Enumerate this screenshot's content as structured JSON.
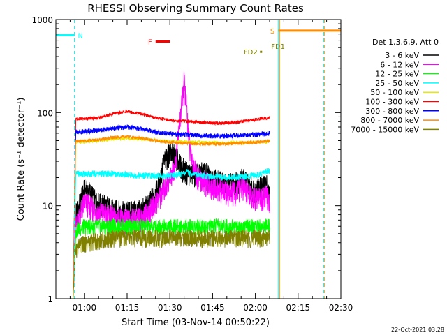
{
  "chart_data": {
    "type": "line",
    "title": "RHESSI Observing Summary Count Rates",
    "xlabel": "Start Time (03-Nov-14 00:50:22)",
    "ylabel": "Count Rate (s⁻¹ detector⁻¹)",
    "yscale": "log",
    "xlim_minutes": [
      0,
      100
    ],
    "ylim": [
      1,
      1000
    ],
    "x_ticks": [
      {
        "m": 10,
        "label": "01:00"
      },
      {
        "m": 25,
        "label": "01:15"
      },
      {
        "m": 40,
        "label": "01:30"
      },
      {
        "m": 55,
        "label": "01:45"
      },
      {
        "m": 70,
        "label": "02:00"
      },
      {
        "m": 85,
        "label": "02:15"
      },
      {
        "m": 100,
        "label": "02:30"
      }
    ],
    "y_ticks": [
      {
        "v": 1,
        "label": "1"
      },
      {
        "v": 10,
        "label": "10"
      },
      {
        "v": 100,
        "label": "100"
      },
      {
        "v": 1000,
        "label": "1000"
      }
    ],
    "legend_title": "Det 1,3,6,9, Att 0",
    "legend": [
      {
        "label": "3 - 6 keV",
        "color": "#000000"
      },
      {
        "label": "6 - 12 keV",
        "color": "#ff00ff"
      },
      {
        "label": "12 - 25 keV",
        "color": "#00ff00"
      },
      {
        "label": "25 - 50 keV",
        "color": "#00ffff"
      },
      {
        "label": "50 - 100 keV",
        "color": "#e8e800"
      },
      {
        "label": "100 - 300 keV",
        "color": "#ff0000"
      },
      {
        "label": "300 - 800 keV",
        "color": "#0000ff"
      },
      {
        "label": "800 - 7000 keV",
        "color": "#ff8c00"
      },
      {
        "label": "7000 - 15000 keV",
        "color": "#808000"
      }
    ],
    "series": [
      {
        "name": "3 - 6 keV",
        "color": "#000000",
        "x": [
          6,
          7,
          9,
          10,
          12,
          14,
          18,
          20,
          25,
          30,
          33,
          36,
          38,
          40,
          42,
          44,
          46,
          48,
          50,
          52,
          55,
          58,
          60,
          63,
          66,
          68,
          70,
          72,
          74,
          75
        ],
        "y": [
          1,
          8,
          12,
          15,
          14,
          11,
          10,
          9,
          8.5,
          9,
          11,
          16,
          30,
          38,
          34,
          26,
          23,
          22,
          22,
          23,
          20,
          18,
          17,
          18,
          20,
          16,
          15,
          16,
          17,
          12
        ]
      },
      {
        "name": "6 - 12 keV",
        "color": "#ff00ff",
        "x": [
          6,
          7,
          9,
          10,
          12,
          14,
          16,
          18,
          20,
          25,
          30,
          33,
          36,
          38,
          40,
          42,
          43,
          44,
          45,
          46,
          47,
          48,
          49,
          50,
          52,
          55,
          58,
          60,
          63,
          66,
          68,
          70,
          72,
          74,
          75
        ],
        "y": [
          2,
          6,
          9,
          11,
          10,
          8.5,
          8.5,
          8,
          7.5,
          7,
          7.5,
          9,
          12,
          15,
          20,
          28,
          60,
          110,
          220,
          100,
          40,
          30,
          24,
          20,
          18,
          16,
          15,
          14,
          14,
          16,
          13,
          12,
          12,
          13,
          10
        ]
      },
      {
        "name": "12 - 25 keV",
        "color": "#00ff00",
        "x": [
          6,
          7,
          10,
          20,
          30,
          40,
          50,
          60,
          70,
          75
        ],
        "y": [
          1,
          5.5,
          6,
          6,
          6,
          6,
          6,
          6,
          6,
          6
        ]
      },
      {
        "name": "25 - 50 keV",
        "color": "#00ffff",
        "x": [
          6,
          7,
          10,
          20,
          30,
          40,
          44,
          46,
          48,
          52,
          60,
          70,
          75
        ],
        "y": [
          1,
          22,
          22,
          22,
          21,
          21,
          22,
          23,
          22,
          21,
          20,
          21,
          24
        ]
      },
      {
        "name": "50 - 100 keV",
        "color": "#e8e800",
        "x": [
          6,
          7,
          15,
          20,
          25,
          30,
          40,
          50,
          60,
          70,
          75
        ],
        "y": [
          1,
          48,
          50,
          52,
          53,
          52,
          49,
          48,
          47,
          48,
          49
        ]
      },
      {
        "name": "100 - 300 keV",
        "color": "#ff0000",
        "x": [
          6,
          7,
          10,
          15,
          20,
          25,
          30,
          35,
          40,
          45,
          50,
          55,
          60,
          65,
          70,
          75
        ],
        "y": [
          1,
          85,
          86,
          88,
          97,
          103,
          97,
          88,
          83,
          81,
          79,
          77,
          77,
          80,
          84,
          89
        ]
      },
      {
        "name": "300 - 800 keV",
        "color": "#0000ff",
        "x": [
          6,
          7,
          10,
          15,
          20,
          25,
          30,
          35,
          40,
          45,
          50,
          55,
          60,
          65,
          70,
          75
        ],
        "y": [
          1,
          62,
          63,
          64,
          68,
          70,
          67,
          62,
          59,
          58,
          57,
          56,
          56,
          57,
          58,
          60
        ]
      },
      {
        "name": "800 - 7000 keV",
        "color": "#ff8c00",
        "x": [
          6,
          7,
          10,
          15,
          20,
          25,
          30,
          35,
          40,
          45,
          50,
          55,
          60,
          65,
          70,
          75
        ],
        "y": [
          1,
          49,
          50,
          51,
          54,
          55,
          53,
          50,
          48,
          47,
          46,
          46,
          46,
          47,
          48,
          49
        ]
      },
      {
        "name": "7000 - 15000 keV",
        "color": "#808000",
        "x": [
          6,
          7,
          10,
          20,
          30,
          40,
          50,
          60,
          70,
          75
        ],
        "y": [
          1,
          3.5,
          4,
          4.5,
          4.5,
          4.5,
          4.5,
          4.5,
          4.5,
          4.5
        ]
      }
    ],
    "flags": [
      {
        "label": "N",
        "color": "#00ffff",
        "y": 680,
        "x_start": 0,
        "x_end": 6.5,
        "label_side": "right"
      },
      {
        "label": "F",
        "color": "#ff0000",
        "y": 580,
        "x_start": 35,
        "x_end": 40,
        "label_side": "left"
      },
      {
        "label": "S",
        "color": "#ff8c00",
        "y": 760,
        "x_start": 78,
        "x_end": 100,
        "label_side": "left"
      },
      {
        "label": "FD1",
        "color": "#808000",
        "y": 520,
        "x_start": 0,
        "x_end": 100,
        "label_side": "label_only"
      },
      {
        "label": "FD2",
        "color": "#808000",
        "y": 450,
        "x_start": 72,
        "x_end": 72,
        "label_side": "left"
      }
    ],
    "vertical_lines": [
      {
        "m": 6.5,
        "color": "#00ffff",
        "style": "dashed"
      },
      {
        "m": 78,
        "color": "#00ffff",
        "style": "solid"
      },
      {
        "m": 78.5,
        "color": "#ff8c00",
        "style": "solid"
      },
      {
        "m": 94,
        "color": "#00ffff",
        "style": "dashed"
      },
      {
        "m": 94.3,
        "color": "#ff8c00",
        "style": "dashed"
      }
    ],
    "footer_date": "22-Oct-2021 03:28"
  }
}
